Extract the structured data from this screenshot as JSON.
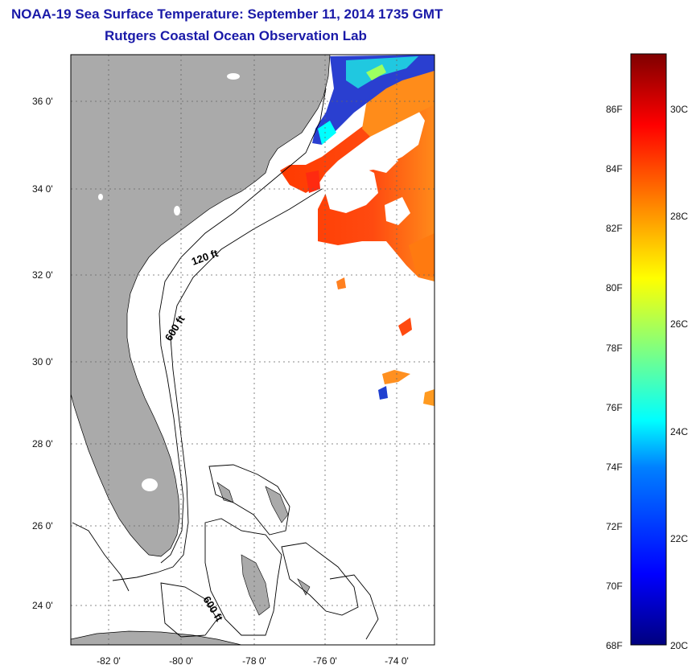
{
  "title": {
    "line1": "NOAA-19 Sea Surface Temperature:  September 11, 2014 1735 GMT",
    "line2": "Rutgers Coastal Ocean Observation Lab"
  },
  "map": {
    "lat_ticks": [
      "36 0'",
      "34 0'",
      "32 0'",
      "30 0'",
      "28 0'",
      "26 0'",
      "24 0'"
    ],
    "lon_ticks": [
      "-82 0'",
      "-80 0'",
      "-78 0'",
      "-76 0'",
      "-74 0'"
    ],
    "contours": {
      "c120": "120 ft",
      "c600a": "600 ft",
      "c600b": "600 ft"
    },
    "colors": {
      "land": "#aaaaaa",
      "ocean": "#ffffff",
      "grid": "#666666"
    }
  },
  "colorbar": {
    "f_labels": [
      "86F",
      "84F",
      "82F",
      "80F",
      "78F",
      "76F",
      "74F",
      "72F",
      "70F",
      "68F"
    ],
    "c_labels": [
      "30C",
      "28C",
      "26C",
      "24C",
      "22C",
      "20C"
    ],
    "colors": [
      "#00007f",
      "#0000ff",
      "#0080ff",
      "#00ffff",
      "#80ff80",
      "#ffff00",
      "#ff8000",
      "#ff0000",
      "#7f0000"
    ]
  }
}
